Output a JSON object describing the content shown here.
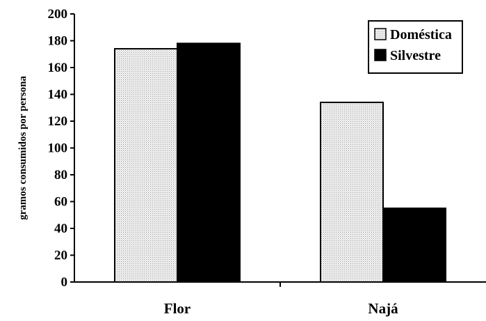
{
  "chart_data": {
    "type": "bar",
    "categories": [
      "Flor",
      "Najá"
    ],
    "series": [
      {
        "name": "Doméstica",
        "values": [
          174,
          134
        ],
        "color": "#d9d9d9",
        "pattern": "dotted"
      },
      {
        "name": "Silvestre",
        "values": [
          178,
          55
        ],
        "color": "#000000",
        "pattern": "solid"
      }
    ],
    "ylabel": "gramos consumidos por persona",
    "ylim": [
      0,
      200
    ],
    "yticks": [
      0,
      20,
      40,
      60,
      80,
      100,
      120,
      140,
      160,
      180,
      200
    ],
    "grid": false,
    "legend_position": "top-right"
  }
}
